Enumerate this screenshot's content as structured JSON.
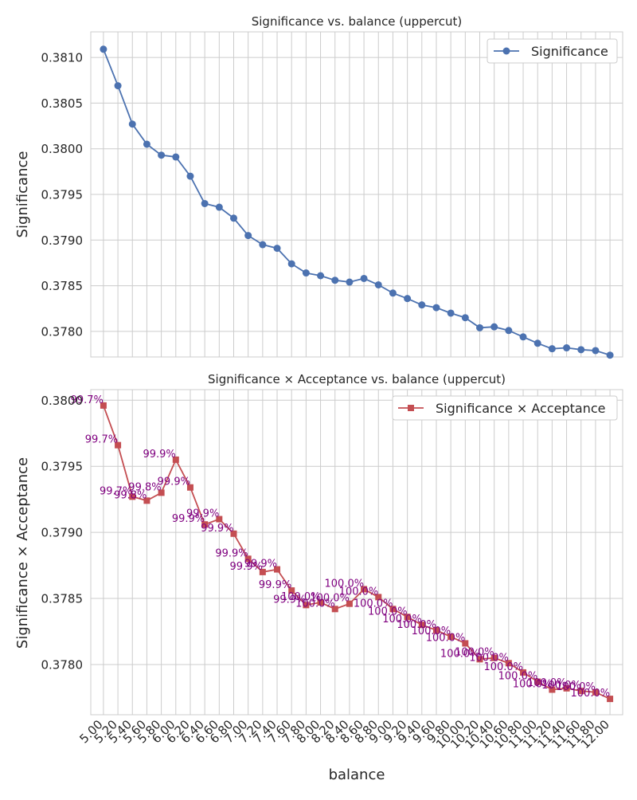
{
  "chart_data": [
    {
      "type": "line",
      "title": "Significance vs. balance (uppercut)",
      "xlabel": "",
      "ylabel": "Significance",
      "ylim": [
        0.37772,
        0.38128
      ],
      "yticks": [
        0.378,
        0.3785,
        0.379,
        0.3795,
        0.38,
        0.3805,
        0.381
      ],
      "ytick_labels": [
        "0.3780",
        "0.3785",
        "0.3790",
        "0.3795",
        "0.3800",
        "0.3805",
        "0.3810"
      ],
      "grid": true,
      "legend": {
        "position": "top-right"
      },
      "series": [
        {
          "name": "Significance",
          "color": "#4c72b0",
          "marker": "circle",
          "x": [
            5.0,
            5.2,
            5.4,
            5.6,
            5.8,
            6.0,
            6.2,
            6.4,
            6.6,
            6.8,
            7.0,
            7.2,
            7.4,
            7.6,
            7.8,
            8.0,
            8.2,
            8.4,
            8.6,
            8.8,
            9.0,
            9.2,
            9.4,
            9.6,
            9.8,
            10.0,
            10.2,
            10.4,
            10.6,
            10.8,
            11.0,
            11.2,
            11.4,
            11.6,
            11.8,
            12.0
          ],
          "values": [
            0.38109,
            0.38069,
            0.38027,
            0.38005,
            0.37993,
            0.37991,
            0.3797,
            0.3794,
            0.37936,
            0.37924,
            0.37905,
            0.37895,
            0.37891,
            0.37874,
            0.37864,
            0.37861,
            0.37856,
            0.37854,
            0.37858,
            0.37851,
            0.37842,
            0.37836,
            0.37829,
            0.37826,
            0.3782,
            0.37815,
            0.37804,
            0.37805,
            0.37801,
            0.37794,
            0.37787,
            0.37781,
            0.37782,
            0.3778,
            0.37779,
            0.37774
          ]
        }
      ]
    },
    {
      "type": "line",
      "title": "Significance × Acceptance vs. balance (uppercut)",
      "xlabel": "balance",
      "ylabel": "Significance × Acceptance",
      "ylim": [
        0.37762,
        0.38008
      ],
      "yticks": [
        0.378,
        0.3785,
        0.379,
        0.3795,
        0.38
      ],
      "ytick_labels": [
        "0.3780",
        "0.3785",
        "0.3790",
        "0.3795",
        "0.3800"
      ],
      "x_tick_labels": [
        "5.00",
        "5.20",
        "5.40",
        "5.60",
        "5.80",
        "6.00",
        "6.20",
        "6.40",
        "6.60",
        "6.80",
        "7.00",
        "7.20",
        "7.40",
        "7.60",
        "7.80",
        "8.00",
        "8.20",
        "8.40",
        "8.60",
        "8.80",
        "9.00",
        "9.20",
        "9.40",
        "9.60",
        "9.80",
        "10.00",
        "10.20",
        "10.40",
        "10.60",
        "10.80",
        "11.00",
        "11.20",
        "11.40",
        "11.60",
        "11.80",
        "12.00"
      ],
      "grid": true,
      "legend": {
        "position": "top-right"
      },
      "series": [
        {
          "name": "Significance × Acceptance",
          "color": "#c44e52",
          "marker": "square",
          "x": [
            5.0,
            5.2,
            5.4,
            5.6,
            5.8,
            6.0,
            6.2,
            6.4,
            6.6,
            6.8,
            7.0,
            7.2,
            7.4,
            7.6,
            7.8,
            8.0,
            8.2,
            8.4,
            8.6,
            8.8,
            9.0,
            9.2,
            9.4,
            9.6,
            9.8,
            10.0,
            10.2,
            10.4,
            10.6,
            10.8,
            11.0,
            11.2,
            11.4,
            11.6,
            11.8,
            12.0
          ],
          "values": [
            0.37996,
            0.37966,
            0.37927,
            0.37924,
            0.3793,
            0.37955,
            0.37934,
            0.37906,
            0.3791,
            0.37899,
            0.3788,
            0.3787,
            0.37872,
            0.37856,
            0.37845,
            0.37847,
            0.37842,
            0.37846,
            0.37857,
            0.37851,
            0.37842,
            0.37836,
            0.3783,
            0.37826,
            0.37821,
            0.37816,
            0.37804,
            0.37805,
            0.37801,
            0.37794,
            0.37787,
            0.37781,
            0.37782,
            0.3778,
            0.37779,
            0.37774
          ]
        }
      ],
      "annotation_color": "#800080",
      "annotations": [
        "99.7%",
        "99.7%",
        "99.7%",
        "99.8%",
        "99.8%",
        "99.9%",
        "99.9%",
        "99.9%",
        "99.9%",
        "99.9%",
        "99.9%",
        "99.9%",
        "99.9%",
        "99.9%",
        "99.9%",
        "100.0%",
        "100.0%",
        "100.0%",
        "100.0%",
        "100.0%",
        "100.0%",
        "100.0%",
        "100.0%",
        "100.0%",
        "100.0%",
        "100.0%",
        "100.0%",
        "100.0%",
        "100.0%",
        "100.0%",
        "100.0%",
        "100.0%",
        "100.0%",
        "100.0%",
        "100.0%",
        "100.0%"
      ]
    }
  ]
}
